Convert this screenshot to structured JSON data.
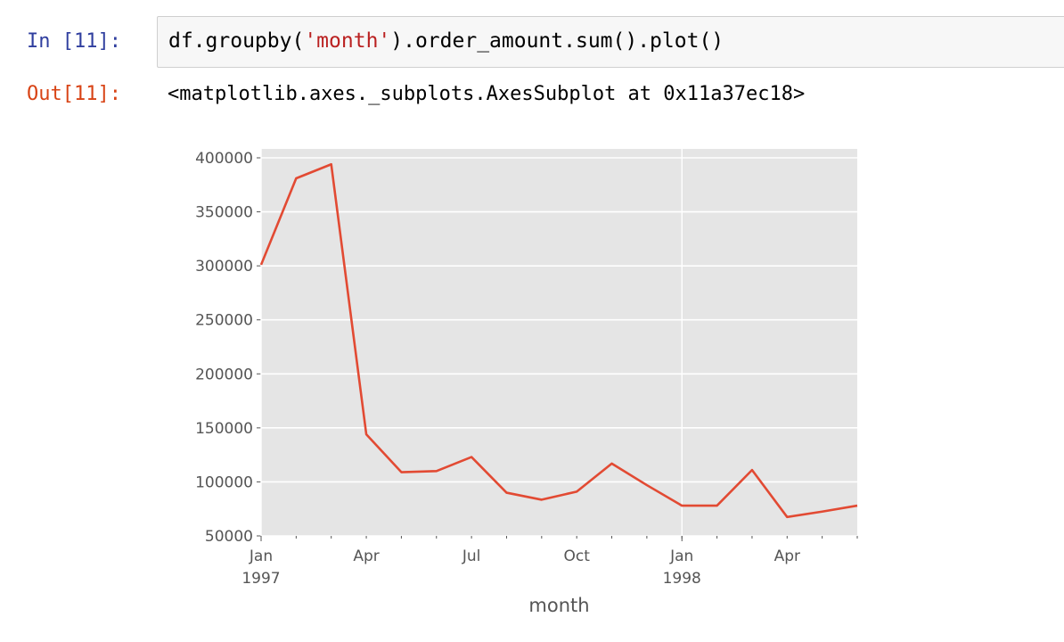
{
  "cell": {
    "in_prompt": "In [11]:",
    "code_prefix": "df.groupby(",
    "code_string": "'month'",
    "code_suffix": ").order_amount.sum().plot()",
    "out_prompt": "Out[11]:",
    "output_text": "<matplotlib.axes._subplots.AxesSubplot at 0x11a37ec18>"
  },
  "colors": {
    "line": "#E24A33",
    "plot_bg": "#E5E5E5",
    "grid": "#FFFFFF",
    "in_prompt": "#303F9F",
    "out_prompt": "#D84315"
  },
  "chart_data": {
    "type": "line",
    "xlabel": "month",
    "ylabel": "",
    "x": [
      "1997-01",
      "1997-02",
      "1997-03",
      "1997-04",
      "1997-05",
      "1997-06",
      "1997-07",
      "1997-08",
      "1997-09",
      "1997-10",
      "1997-11",
      "1997-12",
      "1998-01",
      "1998-02",
      "1998-03",
      "1998-04",
      "1998-05",
      "1998-06"
    ],
    "values": [
      301000,
      381000,
      394000,
      144000,
      109000,
      110000,
      123000,
      90000,
      83500,
      91000,
      117000,
      97000,
      78000,
      78000,
      111000,
      67500,
      72500,
      78000
    ],
    "ylim": [
      50000,
      400000
    ],
    "yticks": [
      "50000",
      "100000",
      "150000",
      "200000",
      "250000",
      "300000",
      "350000",
      "400000"
    ],
    "xticks": [
      {
        "month": "1997-01",
        "label": "Jan",
        "sublabel": "1997"
      },
      {
        "month": "1997-04",
        "label": "Apr",
        "sublabel": ""
      },
      {
        "month": "1997-07",
        "label": "Jul",
        "sublabel": ""
      },
      {
        "month": "1997-10",
        "label": "Oct",
        "sublabel": ""
      },
      {
        "month": "1998-01",
        "label": "Jan",
        "sublabel": "1998"
      },
      {
        "month": "1998-04",
        "label": "Apr",
        "sublabel": ""
      }
    ],
    "grid": true,
    "style": "ggplot"
  }
}
